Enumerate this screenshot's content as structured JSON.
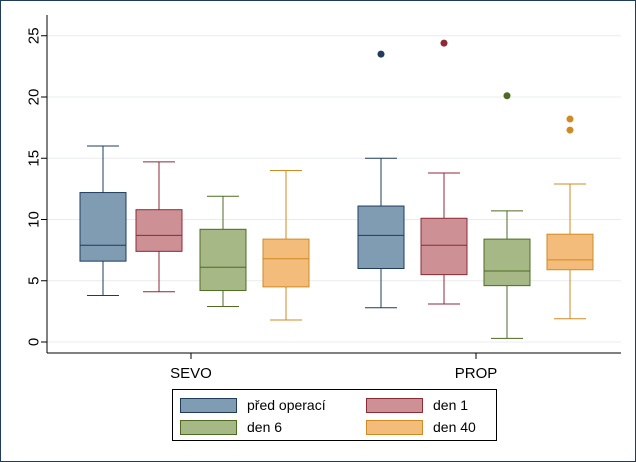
{
  "chart_data": {
    "type": "box",
    "title": "",
    "xlabel": "",
    "ylabel": "",
    "ylim": [
      -1,
      26
    ],
    "yticks": [
      0,
      5,
      10,
      15,
      20,
      25
    ],
    "grid": true,
    "legend_position": "bottom",
    "categories": [
      "SEVO",
      "PROP"
    ],
    "series": [
      {
        "name": "před operací",
        "fill": "#7f9cb3",
        "stroke": "#1f3c5c",
        "boxes": [
          {
            "min": 3.8,
            "q1": 6.6,
            "median": 7.9,
            "q3": 12.2,
            "max": 16.0,
            "outliers": []
          },
          {
            "min": 2.8,
            "q1": 6.0,
            "median": 8.7,
            "q3": 11.1,
            "max": 15.0,
            "outliers": [
              23.5
            ]
          }
        ]
      },
      {
        "name": "den 1",
        "fill": "#cc9095",
        "stroke": "#8c2a36",
        "boxes": [
          {
            "min": 4.1,
            "q1": 7.4,
            "median": 8.7,
            "q3": 10.8,
            "max": 14.7,
            "outliers": []
          },
          {
            "min": 3.1,
            "q1": 5.5,
            "median": 7.9,
            "q3": 10.1,
            "max": 13.8,
            "outliers": [
              24.4
            ]
          }
        ]
      },
      {
        "name": "den 6",
        "fill": "#a6b886",
        "stroke": "#4e6b24",
        "boxes": [
          {
            "min": 2.9,
            "q1": 4.2,
            "median": 6.1,
            "q3": 9.2,
            "max": 11.9,
            "outliers": []
          },
          {
            "min": 0.3,
            "q1": 4.6,
            "median": 5.8,
            "q3": 8.4,
            "max": 10.7,
            "outliers": [
              20.1
            ]
          }
        ]
      },
      {
        "name": "den 40",
        "fill": "#f4bc7a",
        "stroke": "#d08a22",
        "boxes": [
          {
            "min": 1.8,
            "q1": 4.5,
            "median": 6.8,
            "q3": 8.4,
            "max": 14.0,
            "outliers": []
          },
          {
            "min": 1.9,
            "q1": 5.9,
            "median": 6.7,
            "q3": 8.8,
            "max": 12.9,
            "outliers": [
              17.3,
              18.2
            ]
          }
        ]
      }
    ]
  }
}
